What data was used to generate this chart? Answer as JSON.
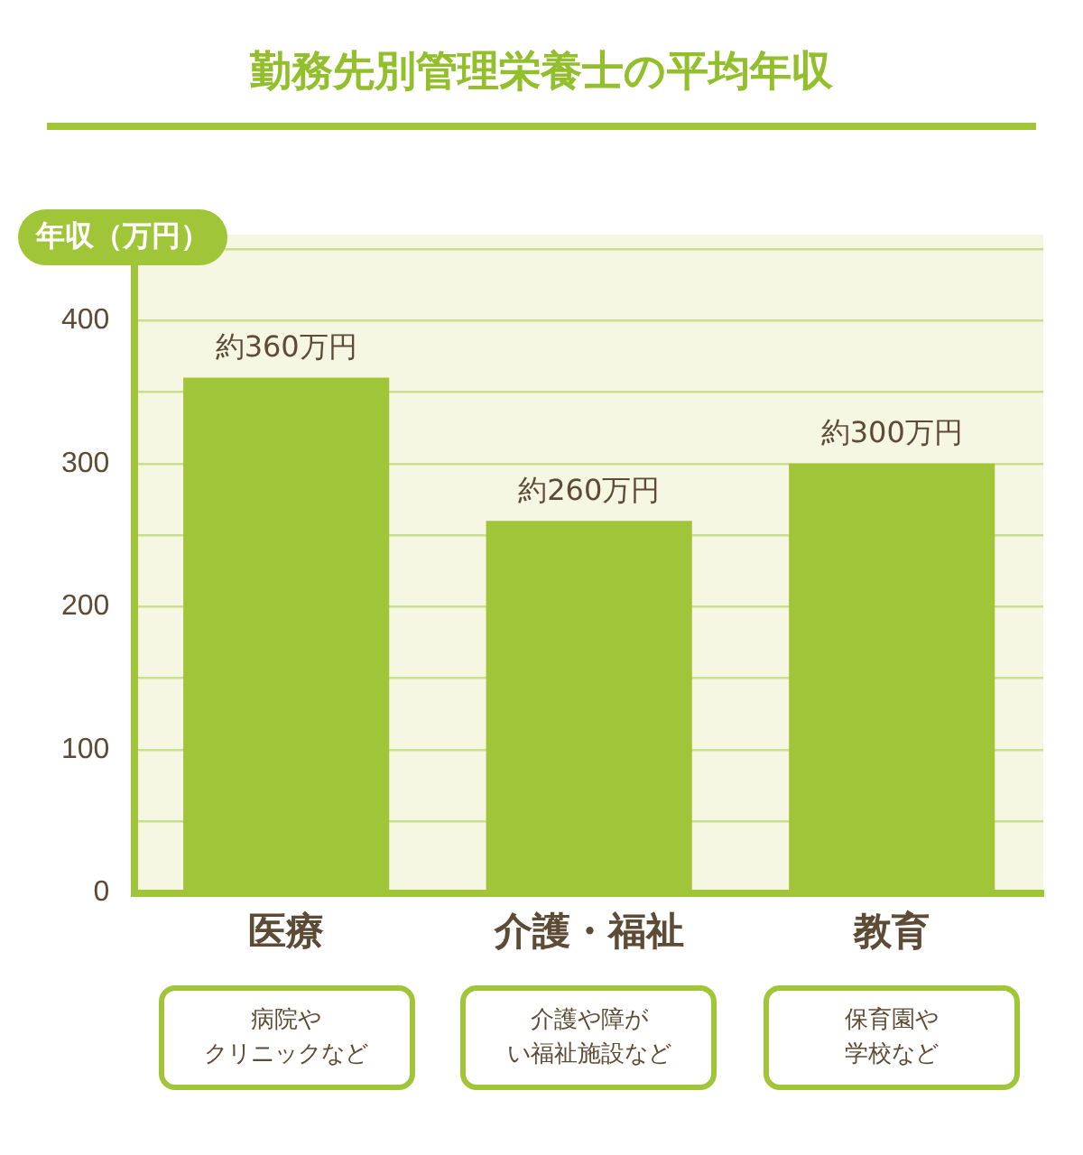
{
  "chart_data": {
    "type": "bar",
    "title": "勤務先別管理栄養士の平均年収",
    "ylabel": "年収（万円）",
    "categories": [
      "医療",
      "介護・福祉",
      "教育"
    ],
    "values": [
      360,
      260,
      300
    ],
    "color": "#a0c538",
    "value_labels": [
      "約360万円",
      "約260万円",
      "約300万円"
    ],
    "ylim": [
      0,
      460
    ],
    "yticks": [
      0,
      {
        "value": 50,
        "label": null
      },
      100,
      {
        "value": 150,
        "label": null
      },
      200,
      {
        "value": 250,
        "label": null
      },
      300,
      {
        "value": 350,
        "label": null
      },
      400,
      {
        "value": 450,
        "label": null
      }
    ],
    "grid": "y",
    "legend": false,
    "annotations": [
      "病院やクリニックなど",
      "介護や障がい福祉施設など",
      "保育園や学校など"
    ]
  }
}
